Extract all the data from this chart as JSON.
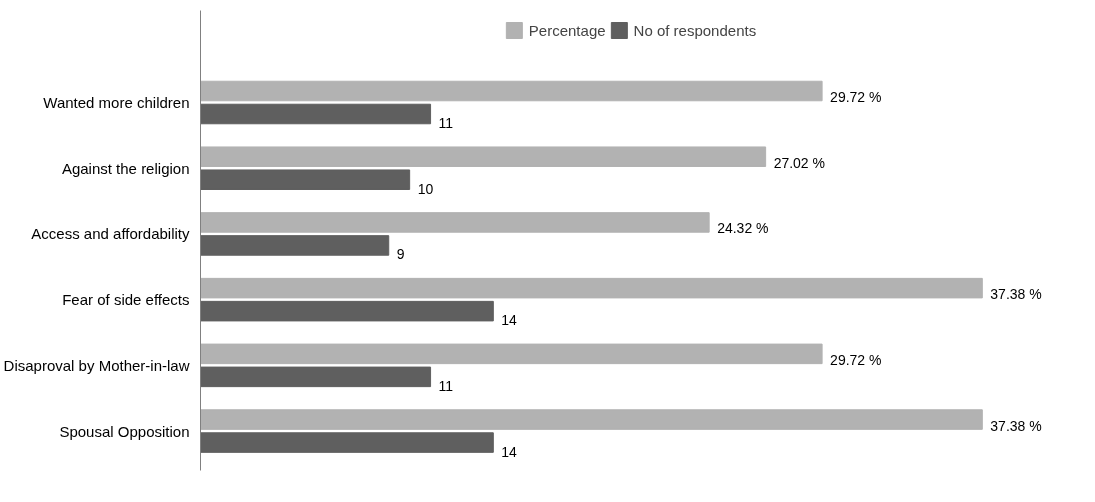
{
  "chart_data": {
    "type": "bar",
    "orientation": "horizontal",
    "categories": [
      "Wanted more children",
      "Against the religion",
      "Access and affordability",
      "Fear of side effects",
      "Disaproval by Mother-in-law",
      "Spousal Opposition"
    ],
    "series": [
      {
        "name": "Percentage",
        "color": "#b2b2b2",
        "values": [
          29.72,
          27.02,
          24.32,
          37.38,
          29.72,
          37.38
        ],
        "value_labels": [
          "29.72 %",
          "27.02 %",
          "24.32 %",
          "37.38 %",
          "29.72 %",
          "37.38 %"
        ]
      },
      {
        "name": "No of respondents",
        "color": "#5f5f5f",
        "values": [
          11,
          10,
          9,
          14,
          11,
          14
        ],
        "value_labels": [
          "11",
          "10",
          "9",
          "14",
          "11",
          "14"
        ]
      }
    ],
    "grid": false,
    "legend": "top"
  }
}
